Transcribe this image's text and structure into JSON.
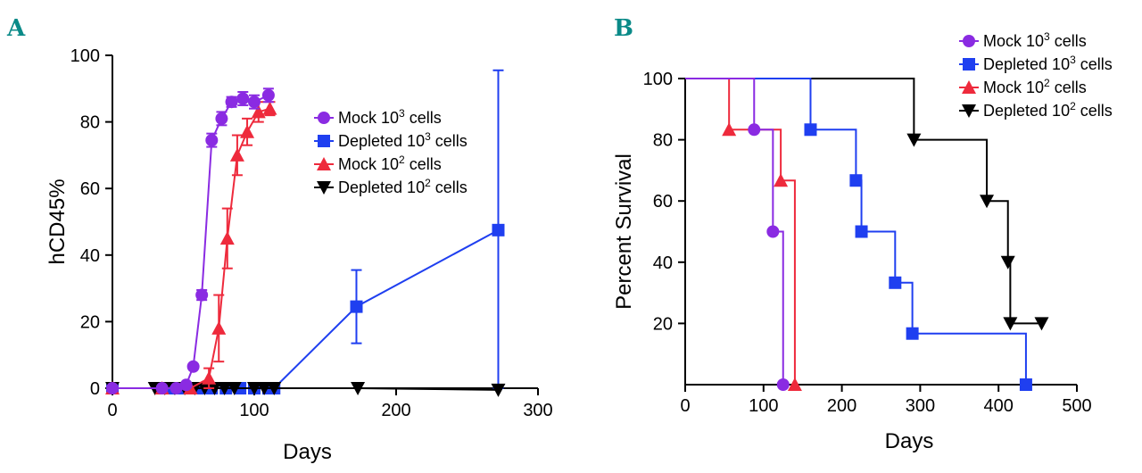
{
  "chart_data": [
    {
      "panel_label": "A",
      "type": "line",
      "xlabel": "Days",
      "ylabel": "hCD45%",
      "xlim": [
        0,
        300
      ],
      "ylim": [
        0,
        100
      ],
      "xticks": [
        0,
        100,
        200,
        300
      ],
      "yticks": [
        0,
        20,
        40,
        60,
        80,
        100
      ],
      "xtick_labels": [
        "0",
        "100",
        "200",
        "300"
      ],
      "ytick_labels": [
        "0",
        "20",
        "40",
        "60",
        "80",
        "100"
      ],
      "legend_position": "top-right",
      "series": [
        {
          "name": "Mock 10",
          "sup": "3",
          "suffix": " cells",
          "color": "#8a2be2",
          "marker": "circle",
          "points": [
            {
              "x": 0,
              "y": 0,
              "err": 0
            },
            {
              "x": 35,
              "y": 0,
              "err": 0
            },
            {
              "x": 45,
              "y": 0,
              "err": 0
            },
            {
              "x": 52,
              "y": 1,
              "err": 0
            },
            {
              "x": 57,
              "y": 6.5,
              "err": 0
            },
            {
              "x": 63,
              "y": 28,
              "err": 1.5
            },
            {
              "x": 70,
              "y": 74.5,
              "err": 2
            },
            {
              "x": 77,
              "y": 81,
              "err": 2
            },
            {
              "x": 84,
              "y": 86,
              "err": 1.5
            },
            {
              "x": 92,
              "y": 87,
              "err": 2
            },
            {
              "x": 100,
              "y": 86,
              "err": 2
            },
            {
              "x": 110,
              "y": 88,
              "err": 2
            }
          ]
        },
        {
          "name": "Depleted 10",
          "sup": "3",
          "suffix": " cells",
          "color": "#1f3ff0",
          "marker": "square",
          "points": [
            {
              "x": 0,
              "y": 0,
              "err": 0
            },
            {
              "x": 40,
              "y": 0,
              "err": 0
            },
            {
              "x": 50,
              "y": 0,
              "err": 0
            },
            {
              "x": 60,
              "y": 0,
              "err": 0
            },
            {
              "x": 70,
              "y": 0,
              "err": 0
            },
            {
              "x": 80,
              "y": 0,
              "err": 0
            },
            {
              "x": 90,
              "y": 0,
              "err": 0
            },
            {
              "x": 100,
              "y": 0,
              "err": 0
            },
            {
              "x": 110,
              "y": 0,
              "err": 0
            },
            {
              "x": 114,
              "y": 0,
              "err": 0
            },
            {
              "x": 172,
              "y": 24.5,
              "err": 11
            },
            {
              "x": 272,
              "y": 47.5,
              "err": 48
            }
          ]
        },
        {
          "name": "Mock 10",
          "sup": "2",
          "suffix": " cells",
          "color": "#ee2a3c",
          "marker": "triangle",
          "points": [
            {
              "x": 0,
              "y": 0,
              "err": 0
            },
            {
              "x": 35,
              "y": 0,
              "err": 0
            },
            {
              "x": 55,
              "y": 0,
              "err": 0
            },
            {
              "x": 68,
              "y": 3,
              "err": 3
            },
            {
              "x": 75,
              "y": 18,
              "err": 10
            },
            {
              "x": 81,
              "y": 45,
              "err": 9
            },
            {
              "x": 88,
              "y": 70,
              "err": 6
            },
            {
              "x": 95,
              "y": 77,
              "err": 4
            },
            {
              "x": 103,
              "y": 83,
              "err": 3
            },
            {
              "x": 111,
              "y": 84,
              "err": 2
            }
          ]
        },
        {
          "name": "Depleted 10",
          "sup": "2",
          "suffix": " cells",
          "color": "#000000",
          "marker": "triangle-down",
          "points": [
            {
              "x": 0,
              "y": 0,
              "err": 0
            },
            {
              "x": 30,
              "y": 0,
              "err": 0
            },
            {
              "x": 37,
              "y": 0,
              "err": 0
            },
            {
              "x": 44,
              "y": 0,
              "err": 0
            },
            {
              "x": 51,
              "y": 0,
              "err": 0
            },
            {
              "x": 58,
              "y": 0,
              "err": 0
            },
            {
              "x": 65,
              "y": 0,
              "err": 0
            },
            {
              "x": 72,
              "y": 0,
              "err": 0
            },
            {
              "x": 79,
              "y": 0,
              "err": 0
            },
            {
              "x": 86,
              "y": 0,
              "err": 0
            },
            {
              "x": 100,
              "y": 0,
              "err": 0
            },
            {
              "x": 107,
              "y": 0,
              "err": 0
            },
            {
              "x": 114,
              "y": 0,
              "err": 0
            },
            {
              "x": 173,
              "y": 0,
              "err": 0
            },
            {
              "x": 272,
              "y": -0.5,
              "err": 0
            }
          ]
        }
      ]
    },
    {
      "panel_label": "B",
      "type": "line",
      "subtype": "kaplan-meier",
      "xlabel": "Days",
      "ylabel": "Percent Survival",
      "xlim": [
        0,
        500
      ],
      "ylim": [
        0,
        100
      ],
      "xticks": [
        0,
        100,
        200,
        300,
        400,
        500
      ],
      "yticks": [
        20,
        40,
        60,
        80,
        100
      ],
      "xtick_labels": [
        "0",
        "100",
        "200",
        "300",
        "400",
        "500"
      ],
      "ytick_labels": [
        "20",
        "40",
        "60",
        "80",
        "100"
      ],
      "legend_position": "top-right",
      "series": [
        {
          "name": "Mock 10",
          "sup": "3",
          "suffix": " cells",
          "color": "#8a2be2",
          "marker": "circle",
          "steps": [
            [
              0,
              100
            ],
            [
              88,
              83.3
            ],
            [
              112,
              50
            ],
            [
              125,
              0
            ]
          ],
          "markers": [
            [
              88,
              83.3
            ],
            [
              112,
              50
            ],
            [
              125,
              0
            ]
          ]
        },
        {
          "name": "Depleted 10",
          "sup": "3",
          "suffix": " cells",
          "color": "#1f3ff0",
          "marker": "square",
          "steps": [
            [
              0,
              100
            ],
            [
              160,
              83.3
            ],
            [
              218,
              66.7
            ],
            [
              225,
              50
            ],
            [
              268,
              33.3
            ],
            [
              290,
              16.7
            ],
            [
              435,
              0
            ]
          ],
          "markers": [
            [
              160,
              83.3
            ],
            [
              218,
              66.7
            ],
            [
              225,
              50
            ],
            [
              268,
              33.3
            ],
            [
              290,
              16.7
            ],
            [
              435,
              0
            ]
          ]
        },
        {
          "name": "Mock 10",
          "sup": "2",
          "suffix": " cells",
          "color": "#ee2a3c",
          "marker": "triangle",
          "steps": [
            [
              0,
              100
            ],
            [
              56,
              83.3
            ],
            [
              122,
              66.7
            ],
            [
              140,
              0
            ]
          ],
          "markers": [
            [
              56,
              83.3
            ],
            [
              122,
              66.7
            ],
            [
              140,
              0
            ]
          ]
        },
        {
          "name": "Depleted 10",
          "sup": "2",
          "suffix": " cells",
          "color": "#000000",
          "marker": "triangle-down",
          "steps": [
            [
              0,
              100
            ],
            [
              292,
              80
            ],
            [
              385,
              60
            ],
            [
              412,
              40
            ],
            [
              415,
              20
            ]
          ],
          "tail_to": 455,
          "markers": [
            [
              292,
              80
            ],
            [
              385,
              60
            ],
            [
              412,
              40
            ],
            [
              415,
              20
            ],
            [
              455,
              20
            ]
          ]
        }
      ]
    }
  ]
}
